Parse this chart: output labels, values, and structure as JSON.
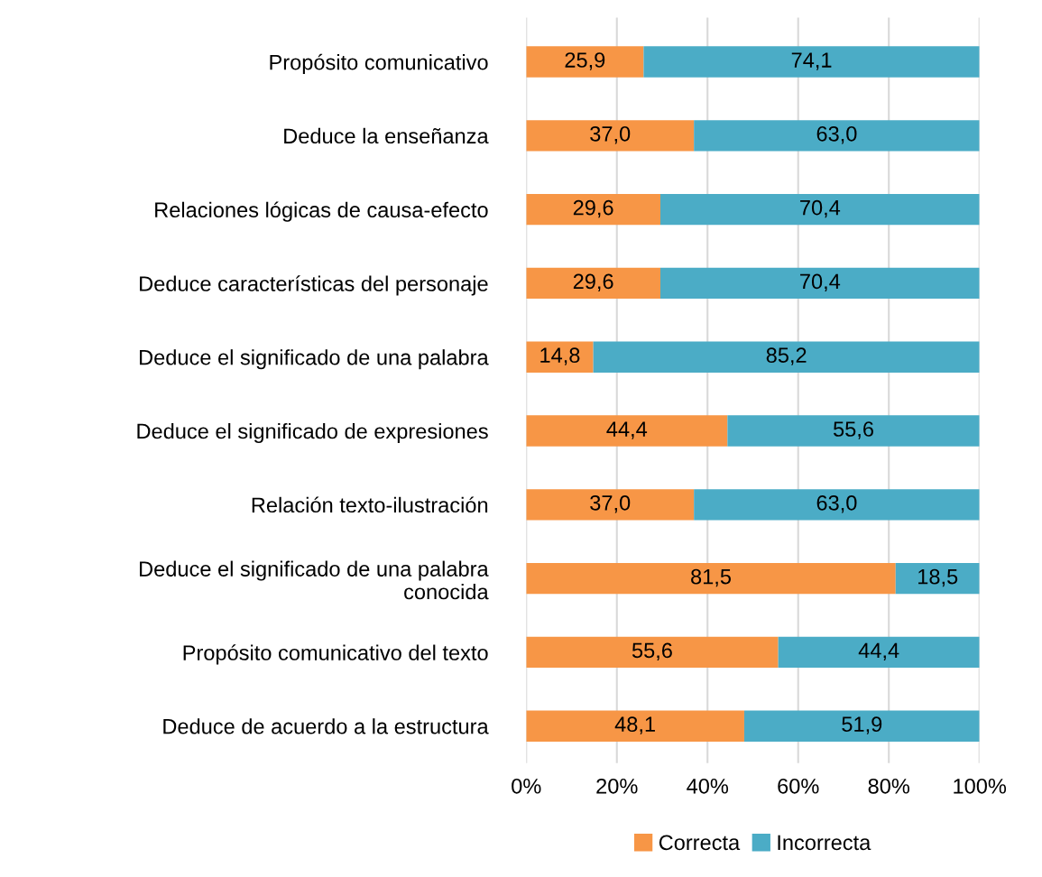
{
  "chart_data": {
    "type": "bar",
    "orientation": "horizontal",
    "stacked": true,
    "categories": [
      "Propósito comunicativo",
      "Deduce la enseñanza",
      "Relaciones lógicas de causa-efecto",
      "Deduce características del personaje",
      "Deduce el significado de una palabra",
      "Deduce el significado de expresiones",
      "Relación texto-ilustración",
      "Deduce el significado de una palabra\nconocida",
      "Propósito comunicativo del texto",
      "Deduce de acuerdo a la estructura"
    ],
    "series": [
      {
        "name": "Correcta",
        "color": "#f79646",
        "values": [
          25.9,
          37.0,
          29.6,
          29.6,
          14.8,
          44.4,
          37.0,
          81.5,
          55.6,
          48.1
        ],
        "value_labels": [
          "25,9",
          "37,0",
          "29,6",
          "29,6",
          "14,8",
          "44,4",
          "37,0",
          "81,5",
          "55,6",
          "48,1"
        ]
      },
      {
        "name": "Incorrecta",
        "color": "#4bacc6",
        "values": [
          74.1,
          63.0,
          70.4,
          70.4,
          85.2,
          55.6,
          63.0,
          18.5,
          44.4,
          51.9
        ],
        "value_labels": [
          "74,1",
          "63,0",
          "70,4",
          "70,4",
          "85,2",
          "55,6",
          "63,0",
          "18,5",
          "44,4",
          "51,9"
        ]
      }
    ],
    "xlim": [
      0,
      100
    ],
    "xticks": [
      {
        "value": 0,
        "label": "0%"
      },
      {
        "value": 20,
        "label": "20%"
      },
      {
        "value": 40,
        "label": "40%"
      },
      {
        "value": 60,
        "label": "60%"
      },
      {
        "value": 80,
        "label": "80%"
      },
      {
        "value": 100,
        "label": "100%"
      }
    ],
    "grid": "x",
    "legend": "bottom"
  }
}
